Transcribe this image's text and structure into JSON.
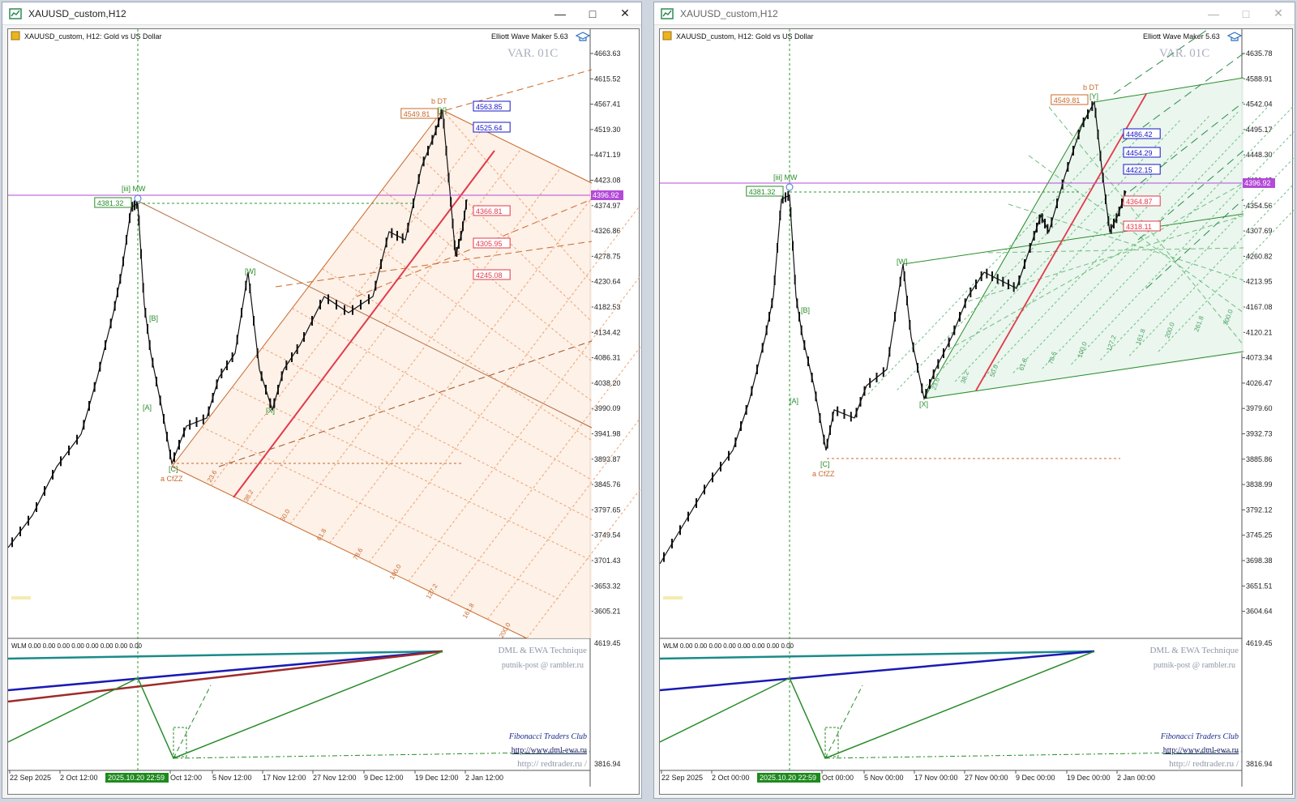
{
  "windows": [
    {
      "title": "XAUUSD_custom,H12",
      "symbol_line": "XAUUSD_custom, H12:  Gold vs US Dollar",
      "indicator_name": "Elliott Wave Maker 5.63",
      "variant": "VAR. 01C",
      "current_price": "4396.92",
      "price_axis": [
        "4663.63",
        "4615.52",
        "4567.41",
        "4519.30",
        "4471.19",
        "4423.08",
        "4374.97",
        "4326.86",
        "4278.75",
        "4230.64",
        "4182.53",
        "4134.42",
        "4086.31",
        "4038.20",
        "3990.09",
        "3941.98",
        "3893.87",
        "3845.76",
        "3797.65",
        "3749.54",
        "3701.43",
        "3653.32",
        "3605.21"
      ],
      "time_axis": [
        "22 Sep 2025",
        "2 Oct 12:00",
        "Oct 12:00",
        "5 Nov 12:00",
        "17 Nov 12:00",
        "27 Nov 12:00",
        "9 Dec 12:00",
        "19 Dec 12:00",
        "2 Jan 12:00"
      ],
      "cursor_time": "2025.10.20 22:59",
      "price_tags": {
        "high": "4549.81",
        "mw": "4381.32",
        "blue1": "4563.85",
        "blue2": "4525.64",
        "red1": "4366.81",
        "red2": "4305.95",
        "red3": "4245.08"
      },
      "wave_labels": {
        "bdt": "b DT",
        "y": "[Y]",
        "iii_mw": "[iii] MW",
        "w": "[W]",
        "b": "[B]",
        "a": "[A]",
        "x": "[X]",
        "c": "[C]",
        "a_cfzz": "a CfZZ"
      },
      "fib_labels": [
        "23.6",
        "38.2",
        "50.0",
        "61.8",
        "78.6",
        "100.0",
        "127.2",
        "161.8",
        "200.0"
      ],
      "sub_title": "WLM 0.00 0.00 0.00 0.00 0.00 0.00 0.00 0.00",
      "sub_axis": [
        "4619.45",
        "3816.94"
      ],
      "credits": [
        "DML & EWA Technique",
        "putnik-post @ rambler.ru"
      ],
      "links": [
        "Fibonacci     Traders     Club",
        "http://www.dml-ewa.ru",
        "http://  redtrader.ru  /"
      ]
    },
    {
      "title": "XAUUSD_custom,H12",
      "symbol_line": "XAUUSD_custom, H12:  Gold vs US Dollar",
      "indicator_name": "Elliott Wave Maker 5.63",
      "variant": "VAR. 01C",
      "current_price": "4396.92",
      "price_axis": [
        "4635.78",
        "4588.91",
        "4542.04",
        "4495.17",
        "4448.30",
        "4401.43",
        "4354.56",
        "4307.69",
        "4260.82",
        "4213.95",
        "4167.08",
        "4120.21",
        "4073.34",
        "4026.47",
        "3979.60",
        "3932.73",
        "3885.86",
        "3838.99",
        "3792.12",
        "3745.25",
        "3698.38",
        "3651.51",
        "3604.64"
      ],
      "time_axis": [
        "22 Sep 2025",
        "2 Oct 00:00",
        "Oct 00:00",
        "5 Nov 00:00",
        "17 Nov 00:00",
        "27 Nov 00:00",
        "9 Dec 00:00",
        "19 Dec 00:00",
        "2 Jan 00:00"
      ],
      "cursor_time": "2025.10.20 22:59",
      "price_tags": {
        "high": "4549.81",
        "mw": "4381.32",
        "blue1": "4486.42",
        "blue2": "4454.29",
        "blue3": "4422.15",
        "red1": "4364.87",
        "red2": "4318.11"
      },
      "wave_labels": {
        "bdt": "b DT",
        "y": "[Y]",
        "iii_mw": "[iii] MW",
        "w": "[W]",
        "b": "[B]",
        "a": "[A]",
        "x": "[X]",
        "c": "[C]",
        "a_cfzz": "a CfZZ"
      },
      "fib_labels": [
        "23.6",
        "38.2",
        "50.0",
        "61.8",
        "78.6",
        "100.0",
        "127.2",
        "161.8",
        "200.0",
        "261.8",
        "300.0"
      ],
      "sub_title": "WLM 0.00 0.00 0.00 0.00 0.00 0.00 0.00 0.00",
      "sub_axis": [
        "4619.45",
        "3816.94"
      ],
      "credits": [
        "DML & EWA Technique",
        "putnik-post @ rambler.ru"
      ],
      "links": [
        "Fibonacci     Traders     Club",
        "http://www.dml-ewa.ru",
        "http://  redtrader.ru  /"
      ]
    }
  ],
  "colors": {
    "fib_fill_left": "#fdeee4",
    "fib_fill_right": "#e8f5ec",
    "orange": "#c8692a",
    "green": "#2a8c2a",
    "price_line": "#b44ad8",
    "red": "#e23a4a",
    "blue": "#1616c8"
  }
}
